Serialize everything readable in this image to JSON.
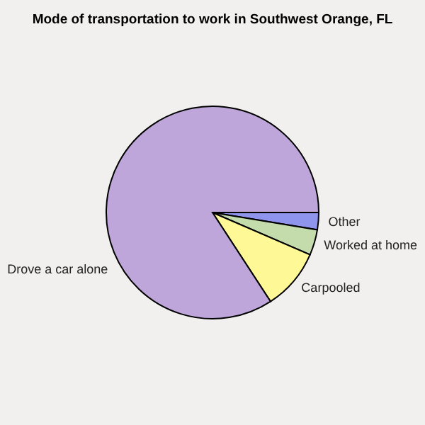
{
  "chart_data": {
    "type": "pie",
    "title": "Mode of transportation to work in Southwest Orange, FL",
    "categories": [
      "Other",
      "Worked at home",
      "Carpooled",
      "Drove a car alone"
    ],
    "values": [
      2.6,
      3.9,
      9.3,
      84.2
    ],
    "colors": [
      "#8f94ec",
      "#c4dcac",
      "#fef896",
      "#bea6da"
    ],
    "legend": false
  }
}
